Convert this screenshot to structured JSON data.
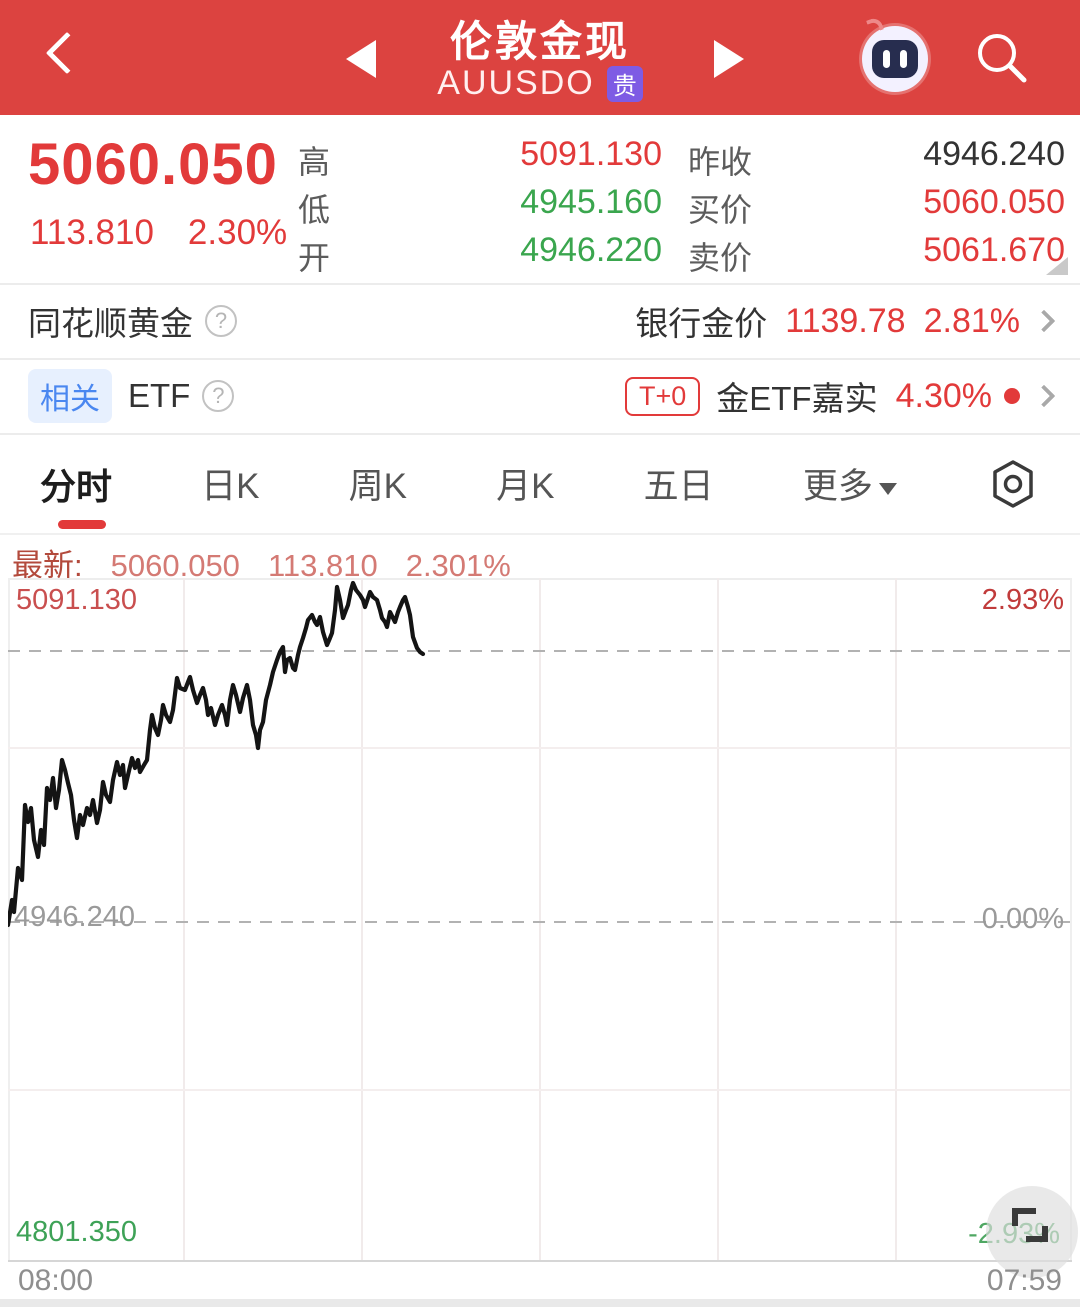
{
  "colors": {
    "header_red": "#dc4340",
    "up_red": "#e23a3a",
    "down_green": "#3aa64e",
    "badge_purple": "#7e5be4",
    "link_blue": "#4a87f0"
  },
  "header": {
    "title": "伦敦金现",
    "symbol": "AUUSDO",
    "badge": "贵"
  },
  "quote": {
    "price": "5060.050",
    "change": "113.810",
    "change_pct": "2.30%",
    "stats_left": [
      {
        "label": "高",
        "value": "5091.130"
      },
      {
        "label": "低",
        "value": "4945.160"
      },
      {
        "label": "开",
        "value": "4946.220"
      }
    ],
    "stats_right": [
      {
        "label": "昨收",
        "value": "4946.240"
      },
      {
        "label": "买价",
        "value": "5060.050"
      },
      {
        "label": "卖价",
        "value": "5061.670"
      }
    ]
  },
  "gold_row": {
    "title": "同花顺黄金",
    "help": "?",
    "right_label": "银行金价",
    "right_value": "1139.78",
    "right_pct": "2.81%"
  },
  "etf_row": {
    "badge": "相关",
    "title": "ETF",
    "help": "?",
    "tplus": "T+0",
    "name": "金ETF嘉实",
    "pct": "4.30%"
  },
  "tabs": {
    "items": [
      "分时",
      "日K",
      "周K",
      "月K",
      "五日",
      "更多"
    ],
    "selected": "分时"
  },
  "latest": {
    "label": "最新:",
    "price": "5060.050",
    "change": "113.810",
    "pct": "2.301%"
  },
  "time_axis": {
    "start": "08:00",
    "end": "07:59"
  },
  "chart_data": {
    "type": "line",
    "symbol": "AUUSDO",
    "title": "分时 (intraday minute line)",
    "y_axis": {
      "top_label": "5091.130",
      "mid_label": "4946.240",
      "bottom_label": "4801.350",
      "top_pct": "2.93%",
      "mid_pct": "0.00%",
      "bottom_pct": "-2.93%",
      "ylim": [
        4801.35,
        5091.13
      ],
      "prev_close": 4946.24
    },
    "x_axis": {
      "start": "08:00",
      "end": "07:59"
    },
    "latest": {
      "price": 5060.05,
      "change": 113.81,
      "pct": "2.301%"
    },
    "current_price_line_y": 73,
    "zero_line_y": 344,
    "line_color": "#141414",
    "points": [
      [
        0,
        347
      ],
      [
        4,
        322
      ],
      [
        6,
        334
      ],
      [
        10,
        290
      ],
      [
        14,
        302
      ],
      [
        17,
        227
      ],
      [
        20,
        244
      ],
      [
        23,
        230
      ],
      [
        26,
        262
      ],
      [
        30,
        279
      ],
      [
        33,
        252
      ],
      [
        36,
        267
      ],
      [
        39,
        210
      ],
      [
        42,
        222
      ],
      [
        45,
        200
      ],
      [
        48,
        230
      ],
      [
        51,
        212
      ],
      [
        54,
        182
      ],
      [
        57,
        192
      ],
      [
        60,
        205
      ],
      [
        63,
        217
      ],
      [
        66,
        242
      ],
      [
        69,
        260
      ],
      [
        72,
        237
      ],
      [
        75,
        247
      ],
      [
        79,
        230
      ],
      [
        82,
        237
      ],
      [
        85,
        222
      ],
      [
        89,
        245
      ],
      [
        92,
        232
      ],
      [
        95,
        204
      ],
      [
        98,
        217
      ],
      [
        102,
        224
      ],
      [
        105,
        202
      ],
      [
        109,
        184
      ],
      [
        112,
        197
      ],
      [
        115,
        187
      ],
      [
        117,
        210
      ],
      [
        120,
        197
      ],
      [
        124,
        180
      ],
      [
        127,
        190
      ],
      [
        130,
        182
      ],
      [
        132,
        194
      ],
      [
        136,
        187
      ],
      [
        139,
        182
      ],
      [
        142,
        152
      ],
      [
        144,
        137
      ],
      [
        147,
        150
      ],
      [
        150,
        157
      ],
      [
        153,
        142
      ],
      [
        155,
        127
      ],
      [
        158,
        137
      ],
      [
        162,
        144
      ],
      [
        165,
        132
      ],
      [
        169,
        100
      ],
      [
        172,
        110
      ],
      [
        177,
        112
      ],
      [
        180,
        104
      ],
      [
        182,
        99
      ],
      [
        185,
        112
      ],
      [
        189,
        125
      ],
      [
        192,
        117
      ],
      [
        195,
        110
      ],
      [
        198,
        122
      ],
      [
        200,
        137
      ],
      [
        203,
        130
      ],
      [
        207,
        147
      ],
      [
        210,
        137
      ],
      [
        214,
        127
      ],
      [
        217,
        137
      ],
      [
        219,
        147
      ],
      [
        222,
        122
      ],
      [
        225,
        107
      ],
      [
        228,
        117
      ],
      [
        232,
        134
      ],
      [
        235,
        120
      ],
      [
        239,
        107
      ],
      [
        242,
        122
      ],
      [
        245,
        147
      ],
      [
        248,
        157
      ],
      [
        250,
        170
      ],
      [
        252,
        152
      ],
      [
        255,
        144
      ],
      [
        258,
        122
      ],
      [
        262,
        107
      ],
      [
        265,
        94
      ],
      [
        269,
        82
      ],
      [
        272,
        74
      ],
      [
        275,
        69
      ],
      [
        277,
        94
      ],
      [
        279,
        82
      ],
      [
        282,
        80
      ],
      [
        285,
        90
      ],
      [
        287,
        92
      ],
      [
        290,
        77
      ],
      [
        292,
        69
      ],
      [
        295,
        60
      ],
      [
        298,
        50
      ],
      [
        300,
        42
      ],
      [
        304,
        37
      ],
      [
        307,
        44
      ],
      [
        309,
        47
      ],
      [
        312,
        39
      ],
      [
        315,
        54
      ],
      [
        319,
        67
      ],
      [
        322,
        60
      ],
      [
        324,
        55
      ],
      [
        327,
        32
      ],
      [
        329,
        9
      ],
      [
        332,
        22
      ],
      [
        335,
        40
      ],
      [
        338,
        32
      ],
      [
        340,
        27
      ],
      [
        343,
        12
      ],
      [
        345,
        5
      ],
      [
        348,
        12
      ],
      [
        352,
        17
      ],
      [
        355,
        22
      ],
      [
        357,
        29
      ],
      [
        360,
        20
      ],
      [
        362,
        14
      ],
      [
        365,
        19
      ],
      [
        369,
        22
      ],
      [
        372,
        32
      ],
      [
        374,
        40
      ],
      [
        377,
        44
      ],
      [
        379,
        49
      ],
      [
        382,
        34
      ],
      [
        385,
        40
      ],
      [
        387,
        44
      ],
      [
        390,
        34
      ],
      [
        392,
        29
      ],
      [
        395,
        22
      ],
      [
        397,
        19
      ],
      [
        400,
        29
      ],
      [
        402,
        37
      ],
      [
        405,
        59
      ],
      [
        409,
        70
      ],
      [
        412,
        74
      ],
      [
        415,
        76
      ]
    ]
  }
}
